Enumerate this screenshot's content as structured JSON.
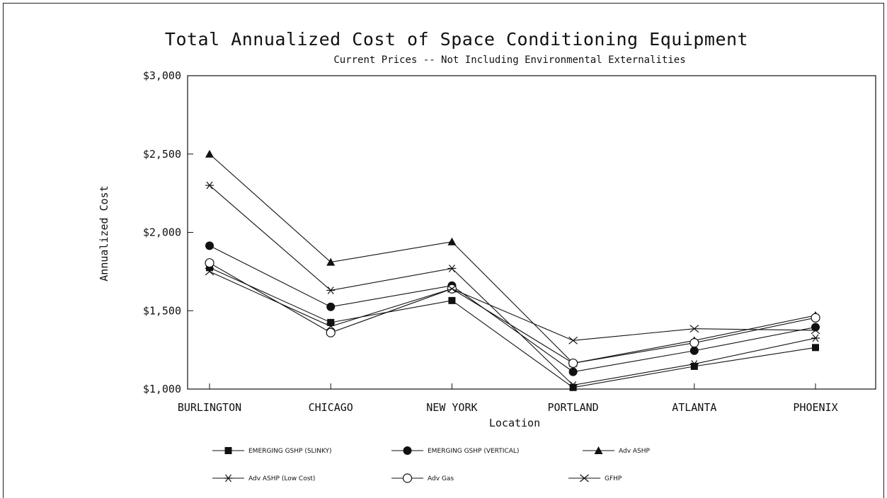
{
  "chart_data": {
    "type": "line",
    "title": "Total Annualized Cost of Space Conditioning Equipment",
    "subtitle": "Current Prices -- Not Including Environmental Externalities",
    "xlabel": "Location",
    "ylabel": "Annualized Cost",
    "ylim": [
      1000,
      3000
    ],
    "yticks": [
      {
        "value": 1000,
        "label": "$1,000"
      },
      {
        "value": 1500,
        "label": "$1,500"
      },
      {
        "value": 2000,
        "label": "$2,000"
      },
      {
        "value": 2500,
        "label": "$2,500"
      },
      {
        "value": 3000,
        "label": "$3,000"
      }
    ],
    "categories": [
      "BURLINGTON",
      "CHICAGO",
      "NEW YORK",
      "PORTLAND",
      "ATLANTA",
      "PHOENIX"
    ],
    "legend_position": "bottom",
    "grid": false,
    "series": [
      {
        "name": "EMERGING GSHP (SLINKY)",
        "marker": "square",
        "values": [
          1775,
          1425,
          1565,
          1010,
          1145,
          1265
        ]
      },
      {
        "name": "EMERGING GSHP (VERTICAL)",
        "marker": "circle",
        "values": [
          1915,
          1525,
          1660,
          1110,
          1245,
          1395
        ]
      },
      {
        "name": "Adv ASHP",
        "marker": "triangle",
        "values": [
          2500,
          1810,
          1940,
          1165,
          1310,
          1470
        ]
      },
      {
        "name": "Adv ASHP (Low Cost)",
        "marker": "asterisk",
        "values": [
          2300,
          1630,
          1770,
          1025,
          1160,
          1325
        ]
      },
      {
        "name": "Adv Gas",
        "marker": "open-circle",
        "values": [
          1805,
          1360,
          1640,
          1165,
          1295,
          1455
        ]
      },
      {
        "name": "GFHP",
        "marker": "x",
        "values": [
          1750,
          1400,
          1640,
          1310,
          1385,
          1375
        ]
      }
    ]
  }
}
